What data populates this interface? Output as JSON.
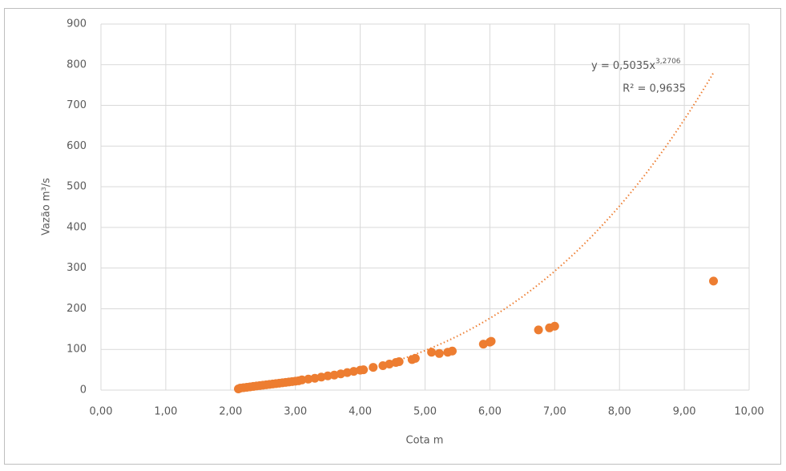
{
  "chart_data": {
    "type": "scatter",
    "x_label": "Cota m",
    "y_label": "Vazão m³/s",
    "color": "#ed7d31",
    "series": [
      {
        "name": "Vazão",
        "color": "#ed7d31",
        "x": [
          2.12,
          2.15,
          2.2,
          2.25,
          2.3,
          2.35,
          2.4,
          2.45,
          2.5,
          2.55,
          2.6,
          2.65,
          2.7,
          2.75,
          2.8,
          2.85,
          2.9,
          2.95,
          3.0,
          3.05,
          3.1,
          3.2,
          3.3,
          3.4,
          3.5,
          3.6,
          3.7,
          3.8,
          3.9,
          4.0,
          4.05,
          4.2,
          4.35,
          4.45,
          4.55,
          4.6,
          4.8,
          4.85,
          5.1,
          5.22,
          5.35,
          5.42,
          5.9,
          6.0,
          6.02,
          6.75,
          6.92,
          7.0,
          9.45
        ],
        "values": [
          3,
          5,
          6,
          7,
          8,
          9,
          10,
          11,
          12,
          13,
          14,
          15,
          16,
          17,
          18,
          19,
          20,
          21,
          22,
          23,
          25,
          27,
          29,
          32,
          35,
          37,
          40,
          43,
          46,
          49,
          50,
          56,
          60,
          64,
          68,
          70,
          75,
          78,
          93,
          90,
          93,
          96,
          113,
          118,
          120,
          148,
          153,
          157,
          268
        ]
      }
    ],
    "trendline": {
      "coefficient": 0.5035,
      "exponent": 3.2706,
      "x_range": [
        2.1,
        9.45
      ],
      "equation_label": "y = 0,5035x",
      "exponent_label": "3,2706",
      "r2_label": "R² = 0,9635"
    },
    "xlim": [
      0,
      10
    ],
    "xticks": [
      {
        "value": 0,
        "label": "0,00"
      },
      {
        "value": 1,
        "label": "1,00"
      },
      {
        "value": 2,
        "label": "2,00"
      },
      {
        "value": 3,
        "label": "3,00"
      },
      {
        "value": 4,
        "label": "4,00"
      },
      {
        "value": 5,
        "label": "5,00"
      },
      {
        "value": 6,
        "label": "6,00"
      },
      {
        "value": 7,
        "label": "7,00"
      },
      {
        "value": 8,
        "label": "8,00"
      },
      {
        "value": 9,
        "label": "9,00"
      },
      {
        "value": 10,
        "label": "10,00"
      }
    ],
    "ylim": [
      0,
      900
    ],
    "yticks": [
      0,
      100,
      200,
      300,
      400,
      500,
      600,
      700,
      800,
      900
    ],
    "grid": true
  }
}
